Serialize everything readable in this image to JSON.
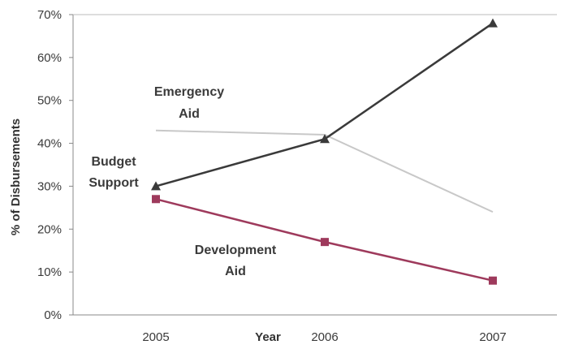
{
  "chart_data": {
    "type": "line",
    "title": "",
    "xlabel": "Year",
    "ylabel": "% of Disbursements",
    "categories": [
      "2005",
      "2006",
      "2007"
    ],
    "ylim": [
      0,
      70
    ],
    "y_ticks": [
      "0%",
      "10%",
      "20%",
      "30%",
      "40%",
      "50%",
      "60%",
      "70%"
    ],
    "grid": false,
    "legend": "none (series labelled directly on the plot)",
    "series": [
      {
        "name": "Budget Support",
        "label_lines": [
          "Budget",
          "Support"
        ],
        "values": [
          30,
          41,
          68
        ],
        "color": "#3a3a3a",
        "marker": "triangle"
      },
      {
        "name": "Emergency Aid",
        "label_lines": [
          "Emergency",
          "Aid"
        ],
        "values": [
          43,
          42,
          24
        ],
        "color": "#c8c8c8",
        "marker": "none"
      },
      {
        "name": "Development Aid",
        "label_lines": [
          "Development",
          "Aid"
        ],
        "values": [
          27,
          17,
          8
        ],
        "color": "#9e3a5c",
        "marker": "square"
      }
    ]
  }
}
